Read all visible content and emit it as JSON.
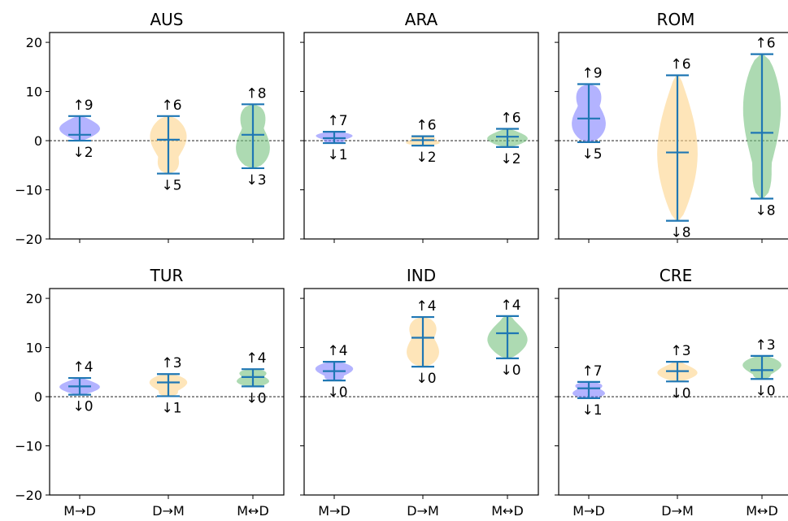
{
  "chart_data": {
    "type": "violin",
    "categories": [
      "M→D",
      "D→M",
      "M↔D"
    ],
    "ylim": [
      -20,
      22
    ],
    "yticks": [
      20,
      10,
      0,
      -10,
      -20
    ],
    "colors": {
      "M→D": "#8080ff",
      "D→M": "#fdd38a",
      "M↔D": "#77c27f",
      "stat_line": "#1f77b4"
    },
    "panels": [
      {
        "title": "AUS",
        "violins": [
          {
            "category": "M→D",
            "min": 0.0,
            "median": 1.2,
            "max": 5.0,
            "up": "↑9",
            "down": "↓2"
          },
          {
            "category": "D→M",
            "min": -6.7,
            "median": 0.2,
            "max": 5.0,
            "up": "↑6",
            "down": "↓5"
          },
          {
            "category": "M↔D",
            "min": -5.6,
            "median": 1.2,
            "max": 7.4,
            "up": "↑8",
            "down": "↓3"
          }
        ]
      },
      {
        "title": "ARA",
        "violins": [
          {
            "category": "M→D",
            "min": -0.5,
            "median": 0.5,
            "max": 1.8,
            "up": "↑7",
            "down": "↓1"
          },
          {
            "category": "D→M",
            "min": -1.0,
            "median": 0.1,
            "max": 0.9,
            "up": "↑6",
            "down": "↓2"
          },
          {
            "category": "M↔D",
            "min": -1.3,
            "median": 0.8,
            "max": 2.4,
            "up": "↑6",
            "down": "↓2"
          }
        ]
      },
      {
        "title": "ROM",
        "violins": [
          {
            "category": "M→D",
            "min": -0.3,
            "median": 4.5,
            "max": 11.5,
            "up": "↑9",
            "down": "↓5"
          },
          {
            "category": "D→M",
            "min": -16.3,
            "median": -2.4,
            "max": 13.3,
            "up": "↑6",
            "down": "↓8"
          },
          {
            "category": "M↔D",
            "min": -11.8,
            "median": 1.6,
            "max": 17.6,
            "up": "↑6",
            "down": "↓8"
          }
        ]
      },
      {
        "title": "TUR",
        "violins": [
          {
            "category": "M→D",
            "min": 0.4,
            "median": 2.1,
            "max": 3.8,
            "up": "↑4",
            "down": "↓0"
          },
          {
            "category": "D→M",
            "min": 0.1,
            "median": 2.9,
            "max": 4.6,
            "up": "↑3",
            "down": "↓1"
          },
          {
            "category": "M↔D",
            "min": 2.1,
            "median": 4.0,
            "max": 5.6,
            "up": "↑4",
            "down": "↓0"
          }
        ]
      },
      {
        "title": "IND",
        "violins": [
          {
            "category": "M→D",
            "min": 3.3,
            "median": 5.2,
            "max": 7.1,
            "up": "↑4",
            "down": "↓0"
          },
          {
            "category": "D→M",
            "min": 6.1,
            "median": 12.0,
            "max": 16.2,
            "up": "↑4",
            "down": "↓0"
          },
          {
            "category": "M↔D",
            "min": 7.8,
            "median": 12.9,
            "max": 16.4,
            "up": "↑4",
            "down": "↓0"
          }
        ]
      },
      {
        "title": "CRE",
        "violins": [
          {
            "category": "M→D",
            "min": -0.3,
            "median": 1.7,
            "max": 3.0,
            "up": "↑7",
            "down": "↓1"
          },
          {
            "category": "D→M",
            "min": 3.1,
            "median": 5.2,
            "max": 7.1,
            "up": "↑3",
            "down": "↓0"
          },
          {
            "category": "M↔D",
            "min": 3.6,
            "median": 5.4,
            "max": 8.3,
            "up": "↑3",
            "down": "↓0"
          }
        ]
      }
    ]
  }
}
